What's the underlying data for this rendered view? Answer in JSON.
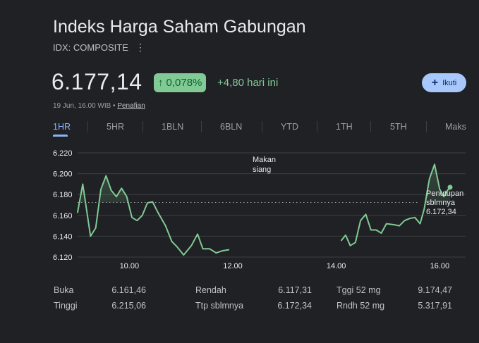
{
  "header": {
    "title": "Indeks Harga Saham Gabungan",
    "ticker": "IDX: COMPOSITE"
  },
  "quote": {
    "price": "6.177,14",
    "change_percent": "0,078%",
    "change_today": "+4,80 hari ini",
    "timestamp": "19 Jun, 16.00 WIB • ",
    "disclaimer": "Penafian",
    "follow_label": "Ikuti"
  },
  "colors": {
    "up": "#81c995",
    "accent": "#8ab4f8",
    "background": "#202124"
  },
  "tabs": [
    {
      "label": "1HR",
      "active": true
    },
    {
      "label": "5HR",
      "active": false
    },
    {
      "label": "1BLN",
      "active": false
    },
    {
      "label": "6BLN",
      "active": false
    },
    {
      "label": "YTD",
      "active": false
    },
    {
      "label": "1TH",
      "active": false
    },
    {
      "label": "5TH",
      "active": false
    },
    {
      "label": "Maks",
      "active": false
    }
  ],
  "chart_data": {
    "type": "line",
    "ylim": [
      6.12,
      6.22
    ],
    "yticks": [
      6.22,
      6.2,
      6.18,
      6.16,
      6.14,
      6.12
    ],
    "ytick_labels": [
      "6.220",
      "6.200",
      "6.180",
      "6.160",
      "6.140",
      "6.120"
    ],
    "xlim": [
      9.0,
      16.5
    ],
    "xticks": [
      10,
      12,
      14,
      16
    ],
    "xtick_labels": [
      "10.00",
      "12.00",
      "14.00",
      "16.00"
    ],
    "grid": true,
    "lunch_label_line1": "Makan",
    "lunch_label_line2": "siang",
    "prev_close_value": 6.17234,
    "prev_close_label_line1": "Penutupan",
    "prev_close_label_line2": "sblmnya",
    "prev_close_label_value": "6.172,34",
    "series": [
      {
        "values": [
          [
            9.0,
            6.163
          ],
          [
            9.1,
            6.19
          ],
          [
            9.25,
            6.14
          ],
          [
            9.35,
            6.148
          ],
          [
            9.45,
            6.185
          ],
          [
            9.55,
            6.198
          ],
          [
            9.65,
            6.184
          ],
          [
            9.75,
            6.178
          ],
          [
            9.85,
            6.186
          ],
          [
            9.95,
            6.178
          ],
          [
            10.05,
            6.158
          ],
          [
            10.15,
            6.155
          ],
          [
            10.25,
            6.16
          ],
          [
            10.35,
            6.172
          ],
          [
            10.45,
            6.173
          ],
          [
            10.55,
            6.163
          ],
          [
            10.7,
            6.15
          ],
          [
            10.82,
            6.135
          ],
          [
            10.92,
            6.13
          ],
          [
            11.05,
            6.122
          ],
          [
            11.2,
            6.131
          ],
          [
            11.32,
            6.142
          ],
          [
            11.42,
            6.128
          ],
          [
            11.55,
            6.128
          ],
          [
            11.68,
            6.124
          ],
          [
            11.8,
            6.126
          ],
          [
            11.92,
            6.127
          ]
        ]
      },
      {
        "values": [
          [
            14.1,
            6.136
          ],
          [
            14.18,
            6.141
          ],
          [
            14.27,
            6.131
          ],
          [
            14.37,
            6.134
          ],
          [
            14.47,
            6.155
          ],
          [
            14.57,
            6.161
          ],
          [
            14.67,
            6.146
          ],
          [
            14.77,
            6.146
          ],
          [
            14.87,
            6.143
          ],
          [
            14.97,
            6.152
          ],
          [
            15.12,
            6.151
          ],
          [
            15.22,
            6.15
          ],
          [
            15.32,
            6.155
          ],
          [
            15.42,
            6.157
          ],
          [
            15.52,
            6.158
          ],
          [
            15.62,
            6.152
          ],
          [
            15.7,
            6.166
          ],
          [
            15.8,
            6.195
          ],
          [
            15.9,
            6.209
          ],
          [
            16.0,
            6.185
          ],
          [
            16.08,
            6.178
          ],
          [
            16.15,
            6.184
          ],
          [
            16.2,
            6.187
          ]
        ]
      }
    ]
  },
  "stats": [
    {
      "label": "Buka",
      "value": "6.161,46"
    },
    {
      "label": "Tinggi",
      "value": "6.215,06"
    },
    {
      "label": "Rendah",
      "value": "6.117,31"
    },
    {
      "label": "Ttp sblmnya",
      "value": "6.172,34"
    },
    {
      "label": "Tggi 52 mg",
      "value": "9.174,47"
    },
    {
      "label": "Rndh 52 mg",
      "value": "5.317,91"
    }
  ]
}
